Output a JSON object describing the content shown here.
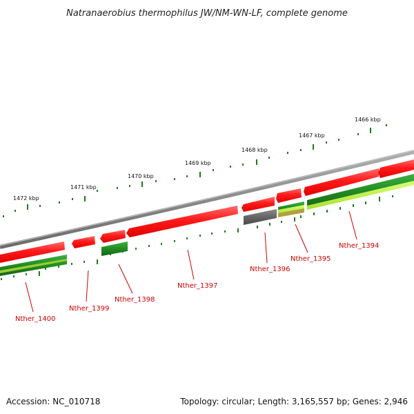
{
  "title": "Natranaerobius thermophilus JW/NM-WN-LF, complete genome",
  "footer": {
    "accession": "Accession: NC_010718",
    "summary": "Topology: circular; Length: 3,165,557 bp; Genes: 2,946"
  },
  "ticks": [
    "1466 kbp",
    "1467 kbp",
    "1468 kbp",
    "1469 kbp",
    "1470 kbp",
    "1471 kbp",
    "1472 kbp"
  ],
  "genes": [
    {
      "name": "Nther_1394",
      "strand": "forward",
      "color": "#ff1a1a"
    },
    {
      "name": "Nther_1394",
      "strand": "reverse",
      "color": "#228b22"
    },
    {
      "name": "Nther_1395",
      "strand": "forward",
      "color": "#ff1a1a"
    },
    {
      "name": "Nther_1395",
      "strand": "reverse",
      "color": "#7fd11a"
    },
    {
      "name": "Nther_1396",
      "strand": "forward",
      "color": "#ff1a1a"
    },
    {
      "name": "Nther_1396",
      "strand": "reverse",
      "color": "#666666"
    },
    {
      "name": "Nther_1397",
      "strand": "forward",
      "color": "#ff1a1a"
    },
    {
      "name": "Nther_1398",
      "strand": "forward",
      "color": "#ff1a1a"
    },
    {
      "name": "Nther_1398",
      "strand": "reverse",
      "color": "#228b22"
    },
    {
      "name": "Nther_1399",
      "strand": "forward",
      "color": "#ff1a1a"
    },
    {
      "name": "Nther_1400",
      "strand": "forward",
      "color": "#ff1a1a"
    },
    {
      "name": "Nther_1400",
      "strand": "reverse",
      "color": "#228b22"
    }
  ],
  "colors": {
    "backbone": "#8a8a8a",
    "tick": "#1a7a1a",
    "label": "#cc0000",
    "cds_forward": "#ff1a1a",
    "gene_reverse": "#228b22",
    "pseudo": "#666666",
    "light_green": "#b8f040"
  }
}
